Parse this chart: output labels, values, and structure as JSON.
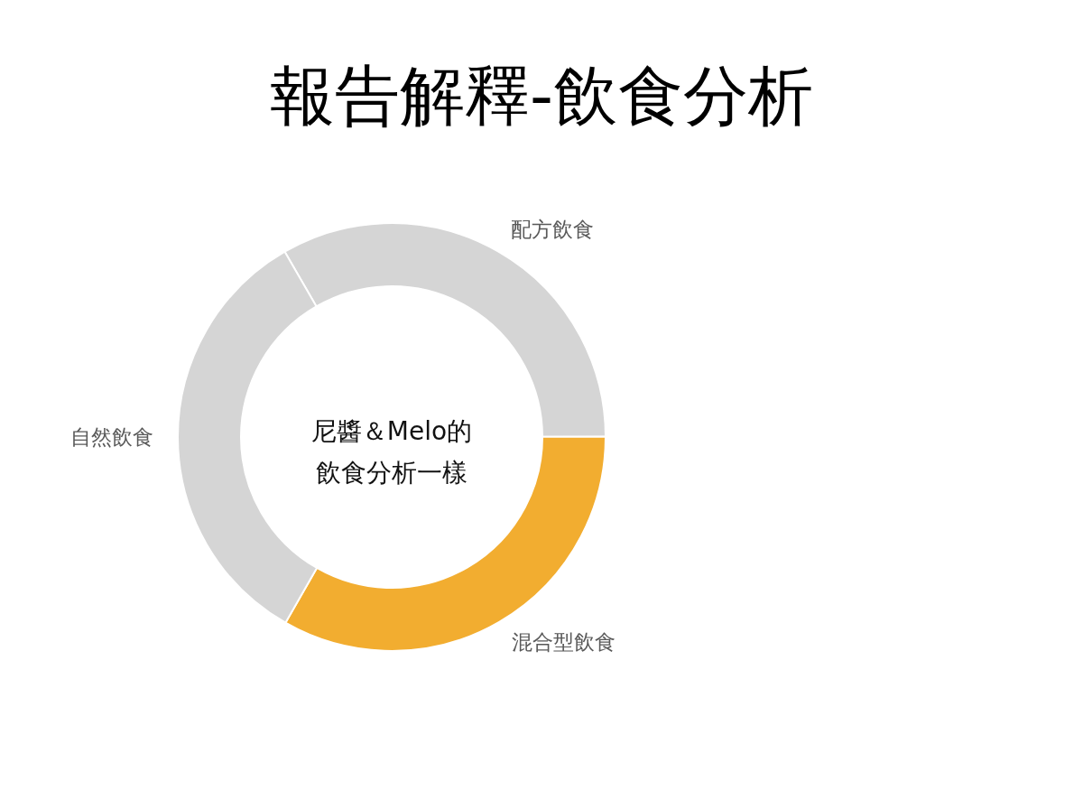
{
  "chart_data": {
    "type": "donut",
    "title": "報告解釋-飲食分析",
    "categories": [
      "配方飲食",
      "混合型飲食",
      "自然飲食"
    ],
    "values": [
      33.3,
      33.3,
      33.4
    ],
    "colors": [
      "#d5d5d5",
      "#f2ad30",
      "#d5d5d5"
    ],
    "annotations": [
      "尼醬＆Melo的",
      "飲食分析一樣"
    ]
  }
}
